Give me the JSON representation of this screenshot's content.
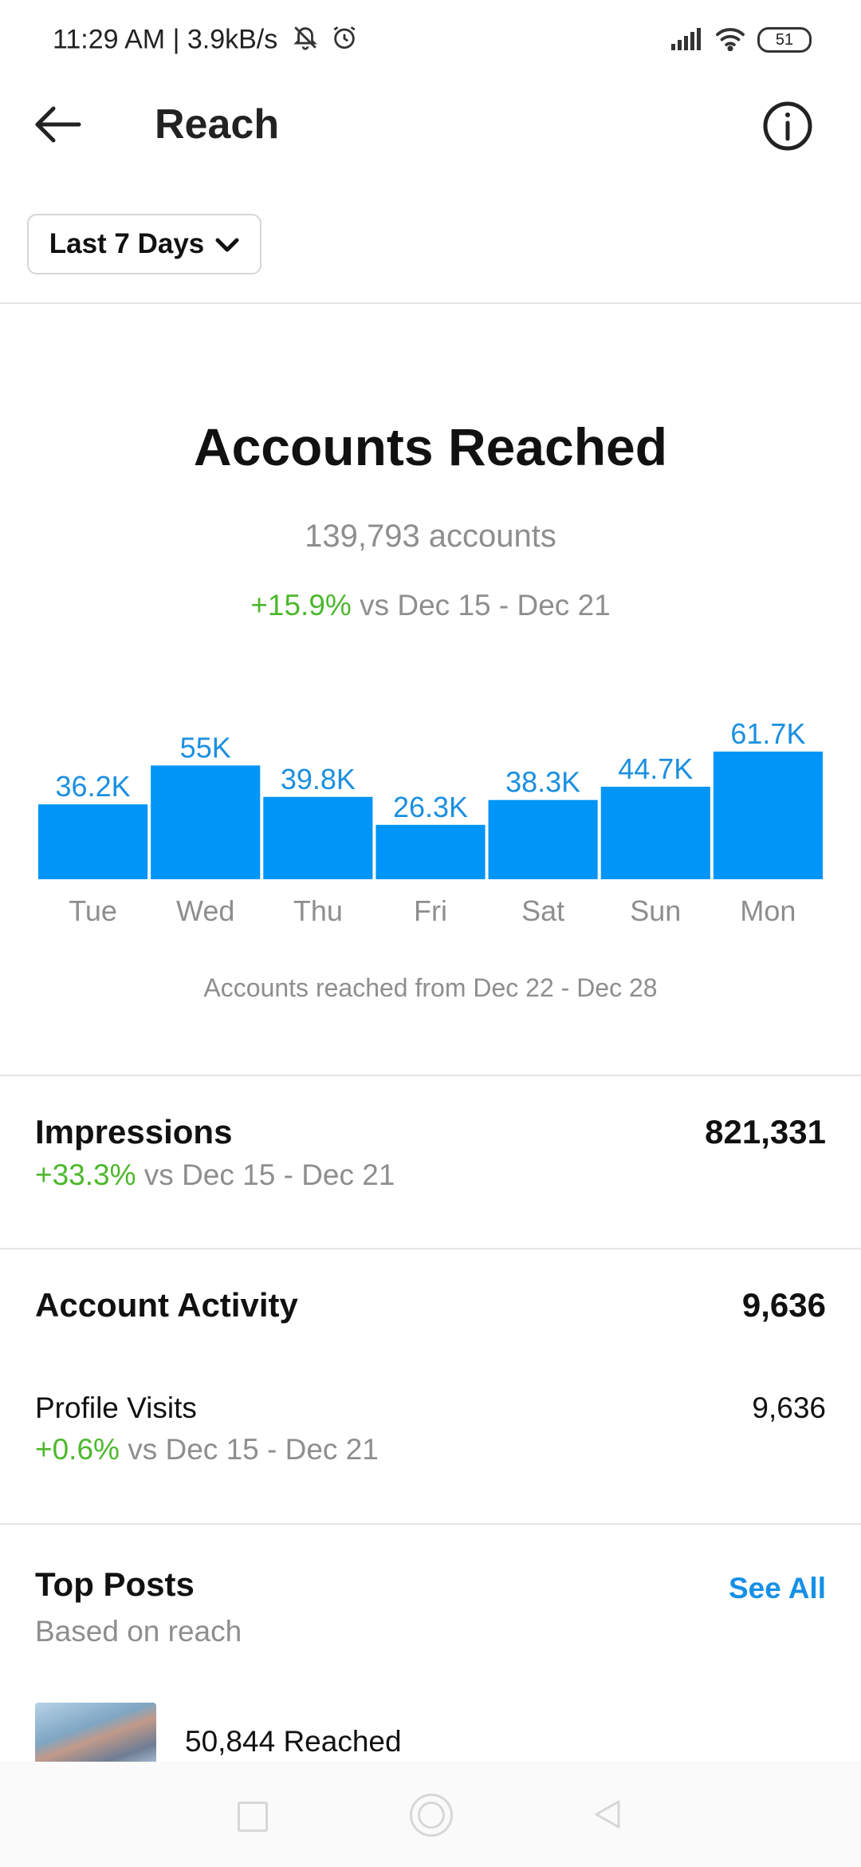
{
  "status_bar": {
    "time": "11:29 AM | 3.9kB/s",
    "battery": "51",
    "icons": [
      "mute-bell-icon",
      "alarm-icon",
      "signal-icon",
      "wifi-icon",
      "battery-icon"
    ]
  },
  "header": {
    "title": "Reach",
    "back_icon": "back-arrow-icon",
    "info_icon": "info-icon"
  },
  "range_selector": {
    "label": "Last 7 Days",
    "icon": "chevron-down-icon"
  },
  "accounts_reached": {
    "title": "Accounts Reached",
    "count_text": "139,793 accounts",
    "change": "+15.9%",
    "change_suffix": " vs Dec 15 - Dec 21",
    "caption": "Accounts reached from Dec 22 - Dec 28"
  },
  "chart_data": {
    "type": "bar",
    "categories": [
      "Tue",
      "Wed",
      "Thu",
      "Fri",
      "Sat",
      "Sun",
      "Mon"
    ],
    "values": [
      36200,
      55000,
      39800,
      26300,
      38300,
      44700,
      61700
    ],
    "data_labels": [
      "36.2K",
      "55K",
      "39.8K",
      "26.3K",
      "38.3K",
      "44.7K",
      "61.7K"
    ],
    "title": "",
    "xlabel": "",
    "ylabel": "",
    "bar_color": "#0095f6",
    "label_color": "#1b8fe0",
    "grid": false
  },
  "impressions": {
    "title": "Impressions",
    "value": "821,331",
    "change": "+33.3%",
    "change_suffix": " vs Dec 15 - Dec 21"
  },
  "account_activity": {
    "title": "Account Activity",
    "value": "9,636",
    "profile_visits_label": "Profile Visits",
    "profile_visits_value": "9,636",
    "profile_visits_change": "+0.6%",
    "profile_visits_change_suffix": " vs Dec 15 - Dec 21"
  },
  "top_posts": {
    "title": "Top Posts",
    "subtitle": "Based on reach",
    "see_all": "See All",
    "items": [
      {
        "reached": "50,844 Reached"
      }
    ]
  },
  "colors": {
    "accent": "#0095f6",
    "positive": "#4cb82c",
    "muted_text": "#8e8e8e"
  }
}
